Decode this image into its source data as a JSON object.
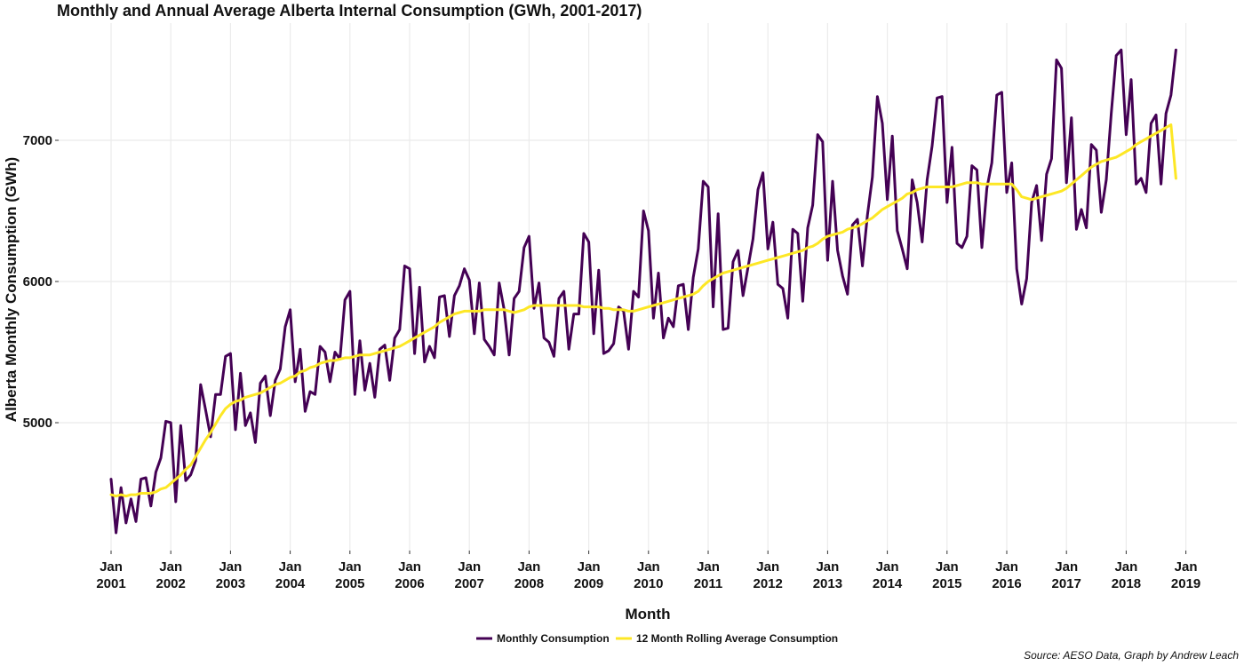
{
  "chart_data": {
    "type": "line",
    "title": "Monthly and Annual Average Alberta Internal Consumption (GWh, 2001-2017)",
    "xlabel": "Month",
    "ylabel": "Alberta Monthly Consumption (GWh)",
    "caption": "Source: AESO Data, Graph by Andrew Leach",
    "x_start": "2001-01",
    "x_ticks": [
      {
        "month": "Jan",
        "year": "2001"
      },
      {
        "month": "Jan",
        "year": "2002"
      },
      {
        "month": "Jan",
        "year": "2003"
      },
      {
        "month": "Jan",
        "year": "2004"
      },
      {
        "month": "Jan",
        "year": "2005"
      },
      {
        "month": "Jan",
        "year": "2006"
      },
      {
        "month": "Jan",
        "year": "2007"
      },
      {
        "month": "Jan",
        "year": "2008"
      },
      {
        "month": "Jan",
        "year": "2009"
      },
      {
        "month": "Jan",
        "year": "2010"
      },
      {
        "month": "Jan",
        "year": "2011"
      },
      {
        "month": "Jan",
        "year": "2012"
      },
      {
        "month": "Jan",
        "year": "2013"
      },
      {
        "month": "Jan",
        "year": "2014"
      },
      {
        "month": "Jan",
        "year": "2015"
      },
      {
        "month": "Jan",
        "year": "2016"
      },
      {
        "month": "Jan",
        "year": "2017"
      },
      {
        "month": "Jan",
        "year": "2018"
      },
      {
        "month": "Jan",
        "year": "2019"
      }
    ],
    "y_ticks": [
      "5000",
      "6000",
      "7000"
    ],
    "ylim": [
      4100,
      7700
    ],
    "grid": true,
    "legend_position": "bottom",
    "series": [
      {
        "name": "Monthly Consumption",
        "color": "#440154",
        "values": [
          4600,
          4220,
          4540,
          4290,
          4460,
          4300,
          4600,
          4610,
          4410,
          4650,
          4750,
          5010,
          5000,
          4440,
          4980,
          4590,
          4630,
          4730,
          5270,
          5090,
          4900,
          5200,
          5200,
          5470,
          5490,
          4950,
          5350,
          4980,
          5070,
          4860,
          5280,
          5330,
          5050,
          5300,
          5380,
          5680,
          5800,
          5290,
          5520,
          5080,
          5220,
          5200,
          5540,
          5500,
          5290,
          5500,
          5450,
          5870,
          5930,
          5200,
          5580,
          5230,
          5420,
          5180,
          5520,
          5550,
          5300,
          5600,
          5660,
          6110,
          6090,
          5490,
          5960,
          5430,
          5540,
          5460,
          5890,
          5900,
          5610,
          5900,
          5970,
          6090,
          6010,
          5630,
          5990,
          5590,
          5540,
          5480,
          5990,
          5800,
          5480,
          5880,
          5930,
          6240,
          6320,
          5810,
          5990,
          5600,
          5570,
          5470,
          5880,
          5930,
          5520,
          5770,
          5770,
          6340,
          6280,
          5630,
          6080,
          5490,
          5510,
          5560,
          5820,
          5790,
          5520,
          5930,
          5890,
          6500,
          6360,
          5740,
          6060,
          5600,
          5740,
          5680,
          5970,
          5980,
          5660,
          6030,
          6230,
          6710,
          6670,
          5820,
          6480,
          5660,
          5670,
          6140,
          6220,
          5900,
          6100,
          6300,
          6650,
          6770,
          6230,
          6420,
          5980,
          5950,
          5740,
          6370,
          6340,
          5860,
          6380,
          6540,
          7040,
          6990,
          6150,
          6710,
          6220,
          6040,
          5910,
          6400,
          6440,
          6110,
          6470,
          6740,
          7310,
          7120,
          6580,
          7030,
          6360,
          6230,
          6090,
          6720,
          6560,
          6280,
          6720,
          6960,
          7300,
          7310,
          6560,
          6950,
          6270,
          6240,
          6320,
          6820,
          6790,
          6240,
          6660,
          6840,
          7320,
          7340,
          6630,
          6840,
          6090,
          5840,
          6020,
          6560,
          6680,
          6290,
          6760,
          6870,
          7570,
          7510,
          6700,
          7160,
          6370,
          6510,
          6380,
          6970,
          6930,
          6490,
          6720,
          7190,
          7600,
          7640,
          7040,
          7430,
          6690,
          6730,
          6630,
          7120,
          7180,
          6690,
          7190,
          7320,
          7640
        ]
      },
      {
        "name": "12 Month Rolling Average Consumption",
        "color": "#fde725",
        "values": [
          4490,
          4480,
          4490,
          4480,
          4490,
          4490,
          4500,
          4500,
          4500,
          4510,
          4530,
          4540,
          4570,
          4600,
          4630,
          4670,
          4700,
          4760,
          4820,
          4880,
          4930,
          4990,
          5050,
          5100,
          5130,
          5150,
          5160,
          5180,
          5190,
          5200,
          5210,
          5230,
          5250,
          5270,
          5280,
          5300,
          5320,
          5330,
          5360,
          5370,
          5390,
          5400,
          5420,
          5430,
          5440,
          5440,
          5450,
          5460,
          5460,
          5470,
          5480,
          5480,
          5480,
          5490,
          5500,
          5510,
          5520,
          5530,
          5540,
          5560,
          5580,
          5600,
          5620,
          5640,
          5660,
          5680,
          5710,
          5730,
          5750,
          5770,
          5780,
          5790,
          5790,
          5790,
          5790,
          5800,
          5800,
          5800,
          5800,
          5800,
          5790,
          5780,
          5790,
          5800,
          5820,
          5830,
          5830,
          5830,
          5830,
          5830,
          5830,
          5830,
          5830,
          5830,
          5830,
          5820,
          5820,
          5820,
          5820,
          5810,
          5810,
          5800,
          5800,
          5800,
          5790,
          5790,
          5800,
          5810,
          5820,
          5830,
          5840,
          5850,
          5860,
          5870,
          5880,
          5890,
          5900,
          5910,
          5930,
          5970,
          6000,
          6020,
          6040,
          6060,
          6070,
          6080,
          6090,
          6100,
          6110,
          6120,
          6130,
          6140,
          6150,
          6160,
          6170,
          6180,
          6190,
          6200,
          6210,
          6220,
          6240,
          6250,
          6270,
          6300,
          6320,
          6330,
          6340,
          6350,
          6370,
          6380,
          6390,
          6410,
          6430,
          6450,
          6480,
          6510,
          6530,
          6550,
          6570,
          6590,
          6620,
          6630,
          6650,
          6660,
          6670,
          6670,
          6670,
          6670,
          6670,
          6670,
          6680,
          6690,
          6700,
          6700,
          6700,
          6690,
          6690,
          6690,
          6690,
          6690,
          6690,
          6690,
          6650,
          6600,
          6590,
          6580,
          6590,
          6600,
          6610,
          6620,
          6630,
          6640,
          6660,
          6690,
          6720,
          6750,
          6780,
          6810,
          6830,
          6850,
          6860,
          6870,
          6880,
          6900,
          6920,
          6940,
          6970,
          6990,
          7010,
          7030,
          7050,
          7070,
          7090,
          7110,
          6730
        ]
      }
    ]
  }
}
